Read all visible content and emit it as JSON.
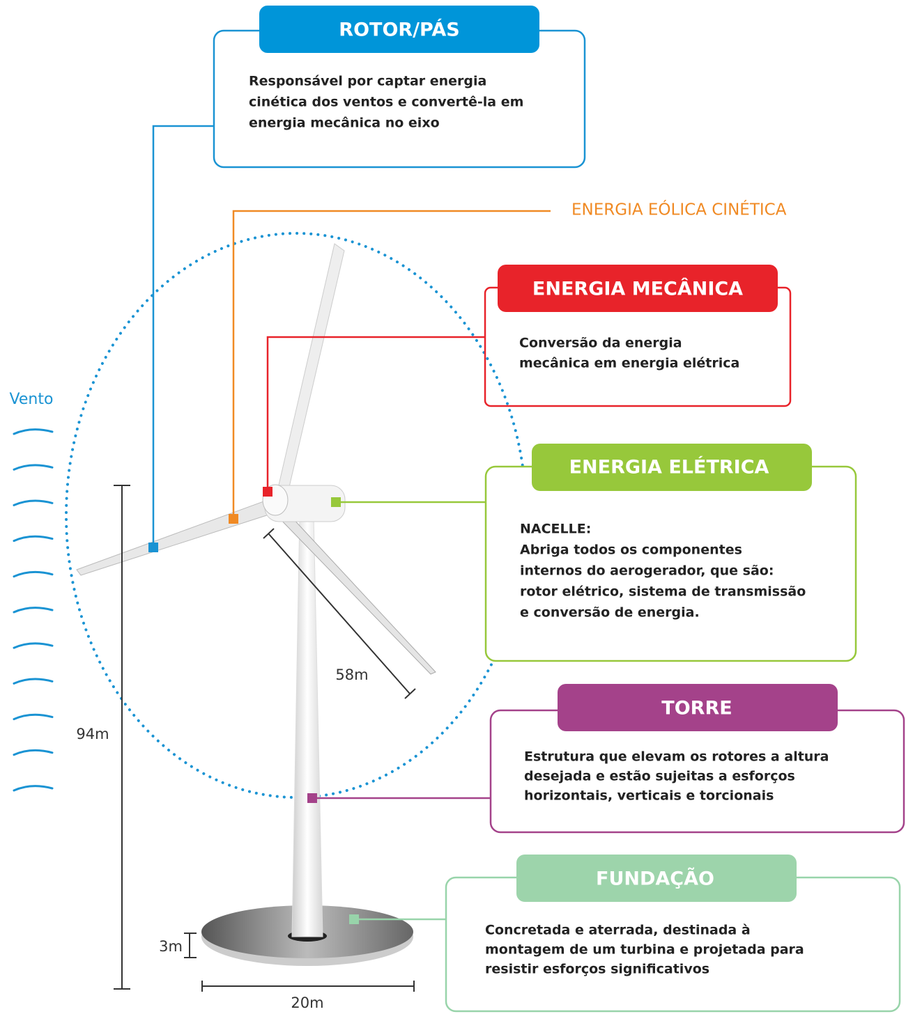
{
  "rotor": {
    "title": "ROTOR/PÁS",
    "lines": [
      "Responsável por captar energia",
      "cinética dos ventos e convertê-la em",
      "energia mecânica no eixo"
    ]
  },
  "wind_energy": {
    "label": "ENERGIA EÓLICA CINÉTICA"
  },
  "mechanical": {
    "title": "ENERGIA MECÂNICA",
    "lines": [
      "Conversão da energia",
      "mecânica em energia elétrica"
    ]
  },
  "electrical": {
    "title": "ENERGIA ELÉTRICA",
    "lines": [
      "NACELLE:",
      "Abriga todos os componentes",
      "internos do aerogerador, que são:",
      "rotor elétrico, sistema de transmissão",
      "e conversão de energia."
    ]
  },
  "tower": {
    "title": "TORRE",
    "lines": [
      "Estrutura que elevam os rotores a altura",
      "desejada e estão sujeitas a esforços",
      "horizontais, verticais e torcionais"
    ]
  },
  "foundation": {
    "title": "FUNDAÇÃO",
    "lines": [
      "Concretada e aterrada, destinada à",
      "montagem de um turbina e projetada para",
      "resistir esforços significativos"
    ]
  },
  "dimensions": {
    "blade": "58m",
    "height": "94m",
    "base_height": "3m",
    "base_width": "20m"
  },
  "wind": {
    "label": "Vento"
  }
}
